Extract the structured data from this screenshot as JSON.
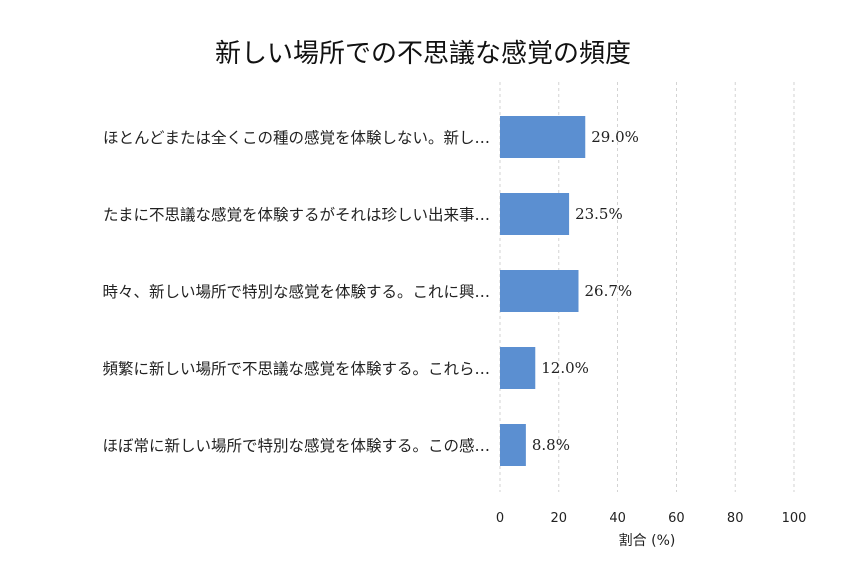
{
  "chart_data": {
    "type": "bar",
    "orientation": "horizontal",
    "title": "新しい場所での不思議な感覚の頻度",
    "xlabel": "割合 (%)",
    "ylabel": "",
    "xlim": [
      0,
      100
    ],
    "xticks": [
      0,
      20,
      40,
      60,
      80,
      100
    ],
    "grid": "vertical-dashed",
    "categories": [
      "ほとんどまたは全くこの種の感覚を体験しない。新し…",
      "たまに不思議な感覚を体験するがそれは珍しい出来事…",
      "時々、新しい場所で特別な感覚を体験する。これに興…",
      "頻繁に新しい場所で不思議な感覚を体験する。これら…",
      "ほぼ常に新しい場所で特別な感覚を体験する。この感…"
    ],
    "values": [
      29.0,
      23.5,
      26.7,
      12.0,
      8.8
    ],
    "value_labels": [
      "29.0%",
      "23.5%",
      "26.7%",
      "12.0%",
      "8.8%"
    ],
    "bar_color": "#5b8fd1"
  }
}
